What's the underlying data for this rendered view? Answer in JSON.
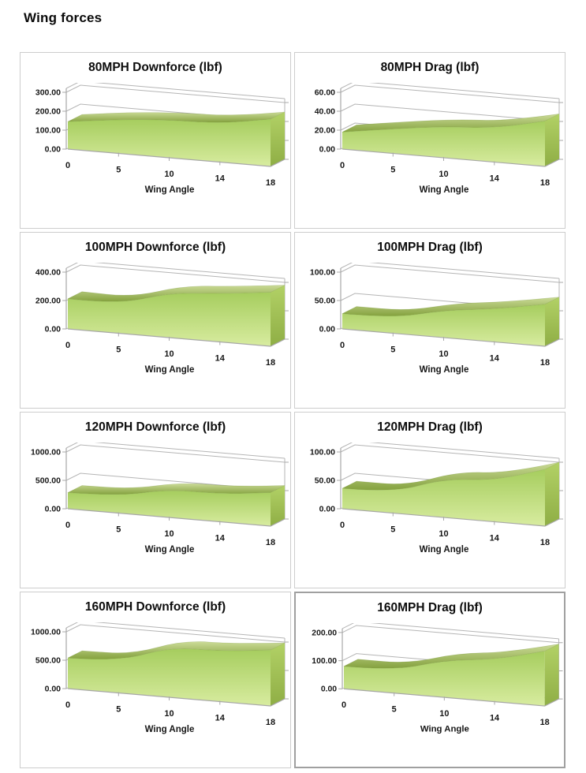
{
  "page": {
    "title": "Wing forces"
  },
  "colors": {
    "area_top": "#a6cd5e",
    "area_bottom": "#d8eca0",
    "ribbon_top": "#cbdb97",
    "ribbon_bottom": "#85a23f",
    "cap_top": "#b2d166",
    "cap_bottom": "#8fae45",
    "frame_line": "#b5b5b5",
    "axis_line": "#a8a8a8",
    "panel_border": "#cdcdcd",
    "selected_border": "#a0a0a0",
    "text": "#161616"
  },
  "chart_data": [
    {
      "type": "area",
      "title": "80MPH Downforce (lbf)",
      "xlabel": "Wing Angle",
      "categories": [
        "0",
        "5",
        "10",
        "14",
        "18"
      ],
      "values": [
        145,
        180,
        200,
        205,
        250
      ],
      "ylim": [
        0,
        300
      ],
      "yticks": [
        "300.00",
        "200.00",
        "100.00",
        "0.00"
      ],
      "grid": true,
      "legend": "none",
      "selected": false
    },
    {
      "type": "area",
      "title": "80MPH Drag (lbf)",
      "xlabel": "Wing Angle",
      "categories": [
        "0",
        "5",
        "10",
        "14",
        "18"
      ],
      "values": [
        18,
        26,
        33,
        36,
        48
      ],
      "ylim": [
        0,
        60
      ],
      "yticks": [
        "60.00",
        "40.00",
        "20.00",
        "0.00"
      ],
      "grid": true,
      "legend": "none",
      "selected": false
    },
    {
      "type": "area",
      "title": "100MPH Downforce (lbf)",
      "xlabel": "Wing Angle",
      "categories": [
        "0",
        "5",
        "10",
        "14",
        "18"
      ],
      "values": [
        212,
        205,
        315,
        340,
        380
      ],
      "ylim": [
        0,
        400
      ],
      "yticks": [
        "400.00",
        "200.00",
        "0.00"
      ],
      "grid": true,
      "legend": "none",
      "selected": false
    },
    {
      "type": "area",
      "title": "100MPH Drag (lbf)",
      "xlabel": "Wing Angle",
      "categories": [
        "0",
        "5",
        "10",
        "14",
        "18"
      ],
      "values": [
        27,
        27,
        48,
        58,
        74
      ],
      "ylim": [
        0,
        100
      ],
      "yticks": [
        "100.00",
        "50.00",
        "0.00"
      ],
      "grid": true,
      "legend": "none",
      "selected": false
    },
    {
      "type": "area",
      "title": "120MPH Downforce (lbf)",
      "xlabel": "Wing Angle",
      "categories": [
        "0",
        "5",
        "10",
        "14",
        "18"
      ],
      "values": [
        285,
        300,
        495,
        490,
        590
      ],
      "ylim": [
        0,
        1000
      ],
      "yticks": [
        "1000.00",
        "500.00",
        "0.00"
      ],
      "grid": true,
      "legend": "none",
      "selected": false
    },
    {
      "type": "area",
      "title": "120MPH Drag (lbf)",
      "xlabel": "Wing Angle",
      "categories": [
        "0",
        "5",
        "10",
        "14",
        "18"
      ],
      "values": [
        36,
        36,
        68,
        73,
        100
      ],
      "ylim": [
        0,
        100
      ],
      "yticks": [
        "100.00",
        "50.00",
        "0.00"
      ],
      "grid": true,
      "legend": "none",
      "selected": false
    },
    {
      "type": "area",
      "title": "160MPH Downforce (lbf)",
      "xlabel": "Wing Angle",
      "categories": [
        "0",
        "5",
        "10",
        "14",
        "18"
      ],
      "values": [
        540,
        555,
        880,
        890,
        985
      ],
      "ylim": [
        0,
        1000
      ],
      "yticks": [
        "1000.00",
        "500.00",
        "0.00"
      ],
      "grid": true,
      "legend": "none",
      "selected": false
    },
    {
      "type": "area",
      "title": "160MPH Drag (lbf)",
      "xlabel": "Wing Angle",
      "categories": [
        "0",
        "5",
        "10",
        "14",
        "18"
      ],
      "values": [
        80,
        80,
        132,
        150,
        195
      ],
      "ylim": [
        0,
        200
      ],
      "yticks": [
        "200.00",
        "100.00",
        "0.00"
      ],
      "grid": true,
      "legend": "none",
      "selected": true
    }
  ]
}
